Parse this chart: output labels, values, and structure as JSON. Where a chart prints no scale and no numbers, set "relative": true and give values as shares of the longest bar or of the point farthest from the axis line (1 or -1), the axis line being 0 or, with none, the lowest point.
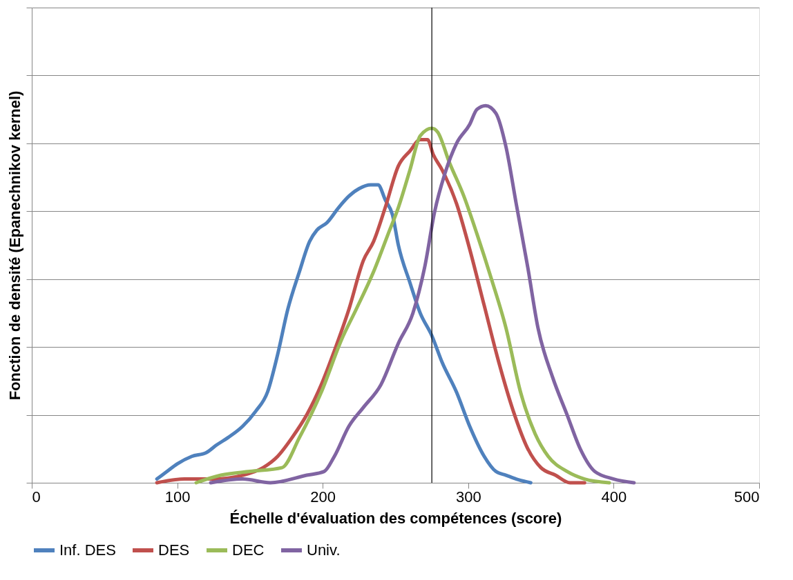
{
  "chart_data": {
    "type": "line",
    "relative": true,
    "xlabel": "Échelle d'évaluation des compétences (score)",
    "ylabel": "Fonction de densité (Epanechnikov kernel)",
    "xlim": [
      0,
      500
    ],
    "xticks": [
      0,
      100,
      200,
      300,
      400,
      500
    ],
    "grid": "y",
    "legend": "bottom",
    "line_style": "solid",
    "marker": "none",
    "ref_lines": [
      {
        "axis": "x",
        "value": 275,
        "color": "#000000"
      }
    ],
    "series": [
      {
        "name": "Inf. DES",
        "color": "#4f81bd",
        "x": [
          86,
          93,
          100,
          110,
          120,
          127,
          135,
          145,
          154,
          162,
          169,
          176,
          184,
          191,
          196,
          203,
          211,
          218,
          225,
          233,
          238,
          243,
          248,
          252,
          260,
          267,
          275,
          282,
          292,
          301,
          311,
          319,
          326,
          333,
          343
        ],
        "values": [
          0.01,
          0.03,
          0.05,
          0.07,
          0.08,
          0.1,
          0.12,
          0.15,
          0.19,
          0.24,
          0.34,
          0.46,
          0.56,
          0.64,
          0.67,
          0.69,
          0.73,
          0.76,
          0.78,
          0.79,
          0.79,
          0.75,
          0.71,
          0.63,
          0.53,
          0.45,
          0.39,
          0.32,
          0.24,
          0.15,
          0.07,
          0.03,
          0.02,
          0.01,
          0.0
        ]
      },
      {
        "name": "DES",
        "color": "#c0504d",
        "x": [
          86,
          105,
          125,
          145,
          159,
          169,
          179,
          189,
          199,
          208,
          218,
          228,
          235,
          243,
          252,
          260,
          267,
          272,
          276,
          282,
          292,
          301,
          311,
          321,
          331,
          341,
          350,
          360,
          370,
          380
        ],
        "values": [
          0.0,
          0.01,
          0.01,
          0.02,
          0.04,
          0.07,
          0.12,
          0.18,
          0.26,
          0.35,
          0.46,
          0.59,
          0.64,
          0.73,
          0.84,
          0.88,
          0.91,
          0.91,
          0.87,
          0.83,
          0.74,
          0.62,
          0.47,
          0.32,
          0.19,
          0.09,
          0.04,
          0.02,
          0.0,
          0.0
        ]
      },
      {
        "name": "DEC",
        "color": "#9bbb59",
        "x": [
          113,
          130,
          150,
          172,
          184,
          199,
          213,
          223,
          235,
          245,
          252,
          260,
          267,
          275,
          279,
          287,
          297,
          306,
          316,
          326,
          336,
          346,
          355,
          368,
          380,
          397
        ],
        "values": [
          0.0,
          0.02,
          0.03,
          0.04,
          0.12,
          0.24,
          0.38,
          0.46,
          0.56,
          0.66,
          0.73,
          0.83,
          0.92,
          0.94,
          0.93,
          0.85,
          0.76,
          0.66,
          0.54,
          0.41,
          0.24,
          0.13,
          0.07,
          0.03,
          0.01,
          0.0
        ]
      },
      {
        "name": "Univ.",
        "color": "#8064a2",
        "x": [
          123,
          145,
          164,
          189,
          201,
          208,
          218,
          228,
          240,
          252,
          262,
          270,
          277,
          284,
          292,
          301,
          306,
          312,
          319,
          326,
          333,
          341,
          348,
          358,
          368,
          377,
          387,
          400,
          414
        ],
        "values": [
          0.0,
          0.01,
          0.0,
          0.02,
          0.03,
          0.07,
          0.15,
          0.2,
          0.26,
          0.37,
          0.45,
          0.57,
          0.72,
          0.82,
          0.9,
          0.95,
          0.99,
          1.0,
          0.98,
          0.89,
          0.74,
          0.57,
          0.41,
          0.28,
          0.18,
          0.09,
          0.03,
          0.01,
          0.0
        ]
      }
    ]
  }
}
